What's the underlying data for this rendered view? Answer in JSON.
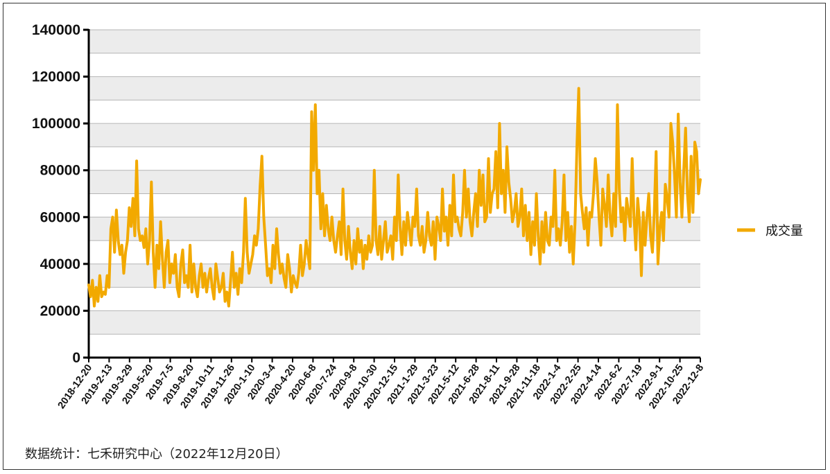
{
  "chart_data": {
    "type": "line",
    "title": "",
    "xlabel": "",
    "ylabel": "",
    "ylim": [
      0,
      140000
    ],
    "yticks": [
      0,
      20000,
      40000,
      60000,
      80000,
      100000,
      120000,
      140000
    ],
    "ytick_labels": [
      "0",
      "20000",
      "40000",
      "60000",
      "80000",
      "100000",
      "120000",
      "140000"
    ],
    "xtick_labels": [
      "2018-12-20",
      "2019-2-13",
      "2019-3-29",
      "2019-5-20",
      "2019-7-5",
      "2019-8-20",
      "2019-10-11",
      "2019-11-26",
      "2020-1-10",
      "2020-3-4",
      "2020-4-20",
      "2020-6-8",
      "2020-7-24",
      "2020-9-8",
      "2020-10-30",
      "2020-12-15",
      "2021-1-29",
      "2021-3-23",
      "2021-5-12",
      "2021-6-28",
      "2021-8-11",
      "2021-9-28",
      "2021-11-18",
      "2022-1-4",
      "2022-2-25",
      "2022-4-14",
      "2022-6-2",
      "2022-7-19",
      "2022-9-1",
      "2022-10-25",
      "2022-12-8"
    ],
    "grid": true,
    "grid_style": "alternating grey bands",
    "legend_position": "right",
    "series": [
      {
        "name": "成交量",
        "color": "#F2A900",
        "values": [
          31000,
          26000,
          33000,
          22000,
          30000,
          24000,
          35000,
          26000,
          28000,
          27000,
          35000,
          30000,
          55000,
          60000,
          45000,
          63000,
          50000,
          44000,
          48000,
          36000,
          45000,
          50000,
          64000,
          56000,
          68000,
          52000,
          84000,
          55000,
          50000,
          52000,
          47000,
          55000,
          40000,
          50000,
          75000,
          45000,
          30000,
          48000,
          38000,
          58000,
          42000,
          30000,
          45000,
          50000,
          32000,
          40000,
          36000,
          44000,
          30000,
          26000,
          40000,
          46000,
          32000,
          35000,
          30000,
          48000,
          28000,
          40000,
          30000,
          26000,
          35000,
          40000,
          30000,
          36000,
          28000,
          34000,
          38000,
          30000,
          25000,
          40000,
          34000,
          28000,
          30000,
          36000,
          24000,
          28000,
          22000,
          33000,
          45000,
          30000,
          36000,
          27000,
          38000,
          32000,
          45000,
          68000,
          45000,
          36000,
          40000,
          44000,
          52000,
          48000,
          55000,
          73000,
          86000,
          60000,
          48000,
          35000,
          38000,
          32000,
          48000,
          38000,
          55000,
          44000,
          36000,
          40000,
          34000,
          30000,
          44000,
          38000,
          28000,
          35000,
          32000,
          30000,
          36000,
          48000,
          35000,
          40000,
          50000,
          44000,
          38000,
          105000,
          80000,
          108000,
          70000,
          80000,
          55000,
          70000,
          52000,
          65000,
          55000,
          50000,
          60000,
          50000,
          45000,
          52000,
          58000,
          44000,
          72000,
          50000,
          42000,
          56000,
          45000,
          38000,
          50000,
          40000,
          55000,
          45000,
          50000,
          38000,
          48000,
          42000,
          52000,
          45000,
          48000,
          80000,
          50000,
          44000,
          56000,
          42000,
          50000,
          58000,
          45000,
          48000,
          52000,
          42000,
          60000,
          50000,
          78000,
          56000,
          44000,
          58000,
          48000,
          62000,
          55000,
          48000,
          60000,
          56000,
          72000,
          52000,
          48000,
          56000,
          45000,
          50000,
          62000,
          52000,
          48000,
          58000,
          42000,
          60000,
          56000,
          50000,
          72000,
          54000,
          60000,
          48000,
          65000,
          52000,
          78000,
          58000,
          60000,
          55000,
          52000,
          62000,
          80000,
          60000,
          72000,
          58000,
          52000,
          62000,
          70000,
          56000,
          80000,
          65000,
          78000,
          58000,
          60000,
          85000,
          62000,
          70000,
          72000,
          88000,
          64000,
          100000,
          70000,
          80000,
          62000,
          90000,
          75000,
          68000,
          58000,
          62000,
          70000,
          56000,
          60000,
          72000,
          52000,
          65000,
          50000,
          62000,
          44000,
          58000,
          48000,
          70000,
          52000,
          40000,
          58000,
          45000,
          62000,
          50000,
          48000,
          60000,
          56000,
          80000,
          50000,
          55000,
          48000,
          58000,
          78000,
          50000,
          62000,
          45000,
          56000,
          40000,
          58000,
          90000,
          115000,
          70000,
          62000,
          55000,
          64000,
          48000,
          62000,
          60000,
          70000,
          85000,
          75000,
          60000,
          48000,
          72000,
          65000,
          56000,
          78000,
          60000,
          52000,
          70000,
          56000,
          108000,
          72000,
          58000,
          64000,
          50000,
          68000,
          62000,
          56000,
          85000,
          60000,
          46000,
          68000,
          58000,
          35000,
          62000,
          48000,
          60000,
          70000,
          52000,
          45000,
          62000,
          88000,
          40000,
          55000,
          62000,
          50000,
          74000,
          68000,
          60000,
          100000,
          92000,
          78000,
          60000,
          104000,
          75000,
          60000,
          80000,
          98000,
          70000,
          58000,
          86000,
          62000,
          92000,
          88000,
          70000,
          76000
        ]
      }
    ]
  },
  "source_note": "数据统计：七禾研究中心（2022年12月20日）"
}
